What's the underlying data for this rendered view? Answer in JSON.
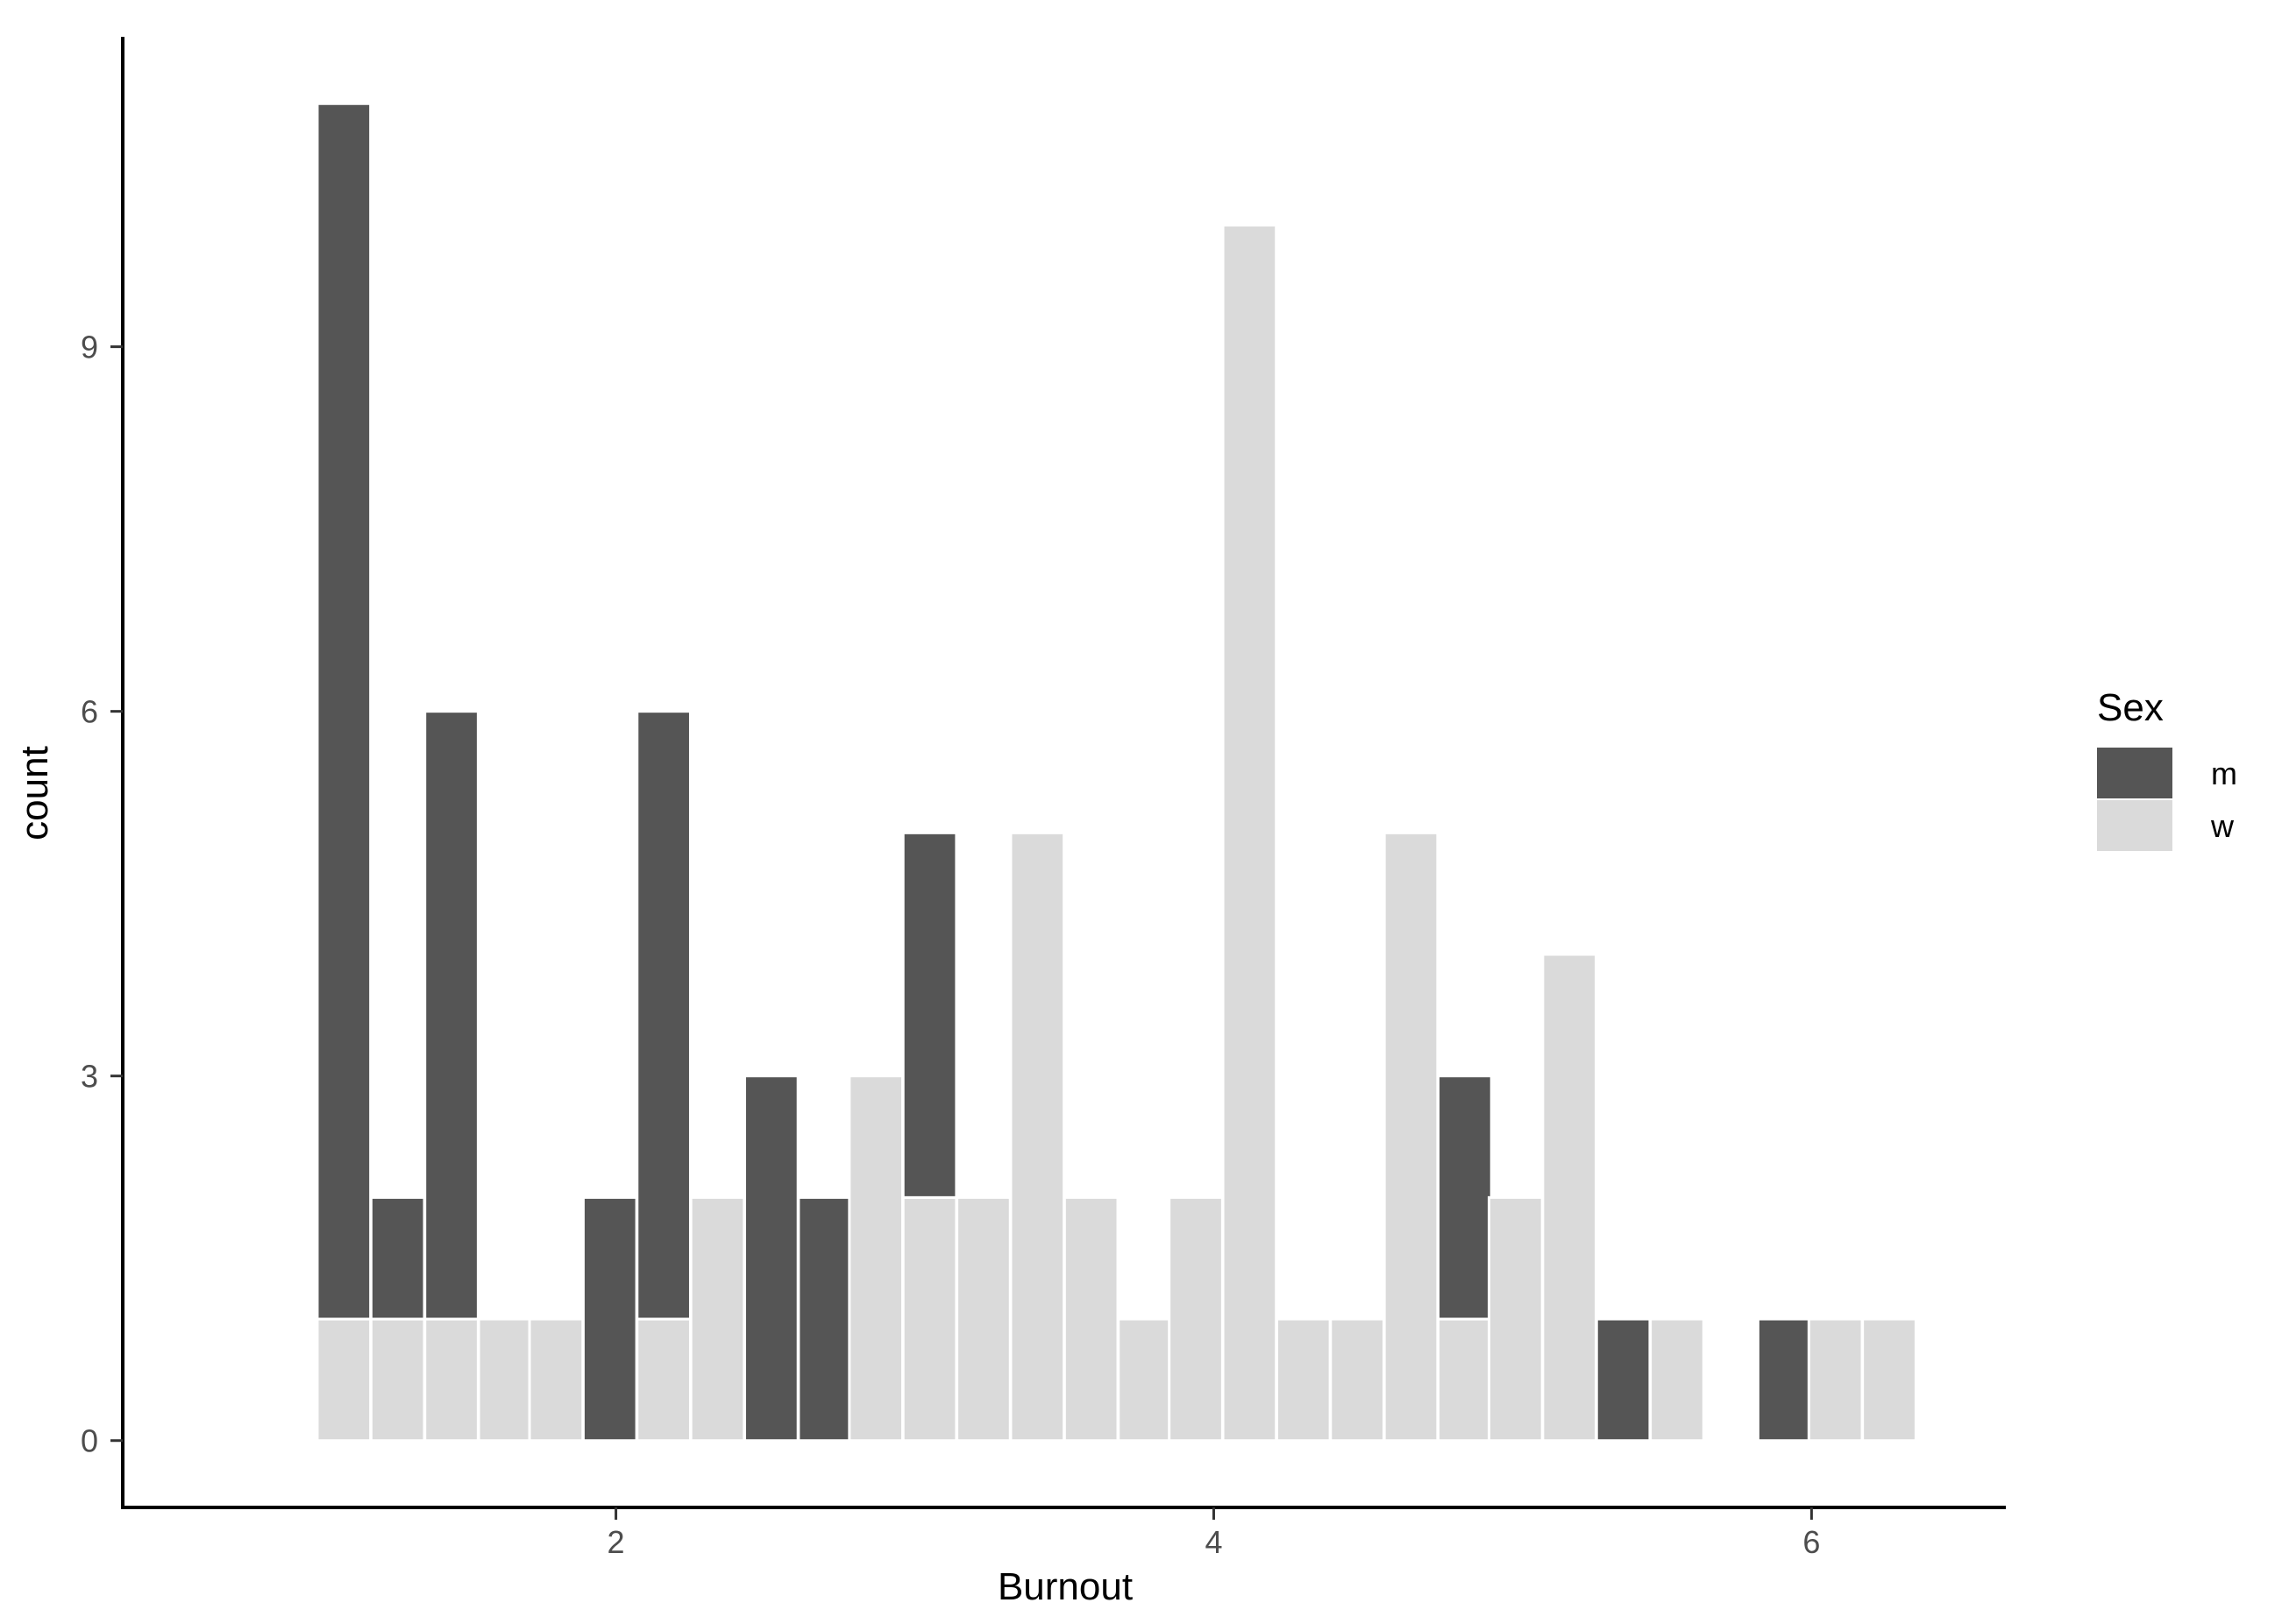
{
  "chart_data": {
    "type": "bar",
    "stacked": true,
    "xlabel": "Burnout",
    "ylabel": "count",
    "xlim": [
      0.35,
      6.65
    ],
    "ylim": [
      -0.55,
      11.55
    ],
    "x_ticks": [
      2,
      4,
      6
    ],
    "y_ticks": [
      0,
      3,
      6,
      9
    ],
    "grid": false,
    "legend": {
      "title": "Sex",
      "placement": "right"
    },
    "bin_width": 0.178,
    "series": [
      {
        "name": "m",
        "color": "#555555",
        "x": [
          1.09,
          1.27,
          1.45,
          1.63,
          1.8,
          1.98,
          2.16,
          2.34,
          2.52,
          2.7,
          2.87,
          3.05,
          3.23,
          3.41,
          3.59,
          3.77,
          3.94,
          4.12,
          4.3,
          4.48,
          4.66,
          4.84,
          5.01,
          5.19,
          5.37,
          5.55,
          5.73,
          5.91,
          6.08,
          6.26
        ],
        "values": [
          10,
          1,
          5,
          0,
          0,
          2,
          5,
          0,
          3,
          2,
          0,
          3,
          0,
          0,
          0,
          0,
          0,
          0,
          0,
          0,
          0,
          2,
          0,
          0,
          1,
          0,
          0,
          1,
          0,
          0
        ]
      },
      {
        "name": "w",
        "color": "#dadada",
        "x": [
          1.09,
          1.27,
          1.45,
          1.63,
          1.8,
          1.98,
          2.16,
          2.34,
          2.52,
          2.7,
          2.87,
          3.05,
          3.23,
          3.41,
          3.59,
          3.77,
          3.94,
          4.12,
          4.3,
          4.48,
          4.66,
          4.84,
          5.01,
          5.19,
          5.37,
          5.55,
          5.73,
          5.91,
          6.08,
          6.26
        ],
        "values": [
          1,
          1,
          1,
          1,
          1,
          0,
          1,
          2,
          0,
          0,
          3,
          2,
          2,
          5,
          2,
          1,
          2,
          10,
          1,
          1,
          5,
          1,
          2,
          4,
          0,
          1,
          0,
          0,
          1,
          1
        ]
      }
    ]
  }
}
